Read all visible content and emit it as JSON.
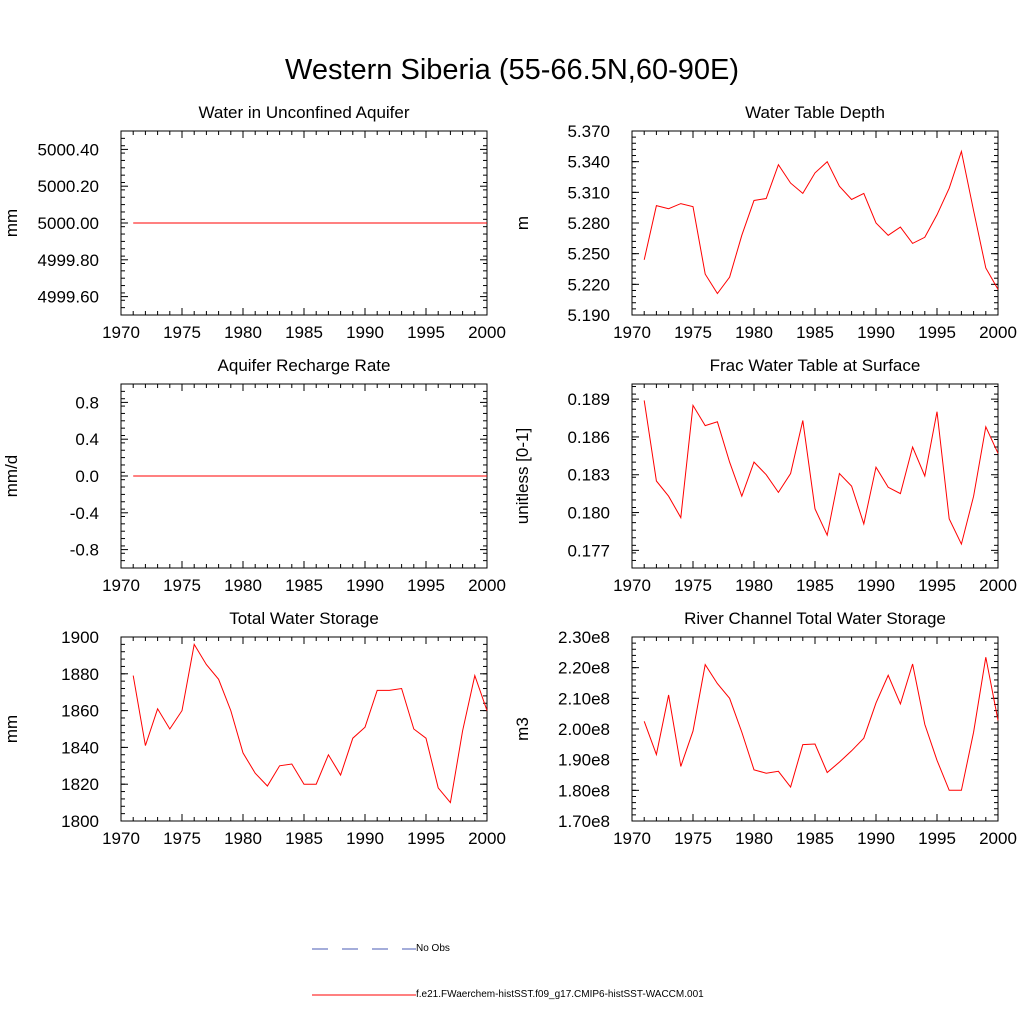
{
  "title": "Western Siberia (55-66.5N,60-90E)",
  "legend": {
    "obs_label": "No Obs",
    "obs_color": "#4a5bb5",
    "model_label": "f.e21.FWaerchem-histSST.f09_g17.CMIP6-histSST-WACCM.001",
    "model_color": "#ff0000"
  },
  "chart_data": [
    {
      "type": "line",
      "title": "Water in Unconfined Aquifer",
      "ylabel": "mm",
      "xlim": [
        1970,
        2000
      ],
      "ylim": [
        4999.5,
        5000.5
      ],
      "xticks": [
        1970,
        1975,
        1980,
        1985,
        1990,
        1995,
        2000
      ],
      "yticks": [
        "4999.60",
        "4999.80",
        "5000.00",
        "5000.20",
        "5000.40"
      ],
      "series": [
        {
          "x": [
            1971,
            1972,
            1973,
            1974,
            1975,
            1976,
            1977,
            1978,
            1979,
            1980,
            1981,
            1982,
            1983,
            1984,
            1985,
            1986,
            1987,
            1988,
            1989,
            1990,
            1991,
            1992,
            1993,
            1994,
            1995,
            1996,
            1997,
            1998,
            1999,
            2000
          ],
          "values": [
            5000,
            5000,
            5000,
            5000,
            5000,
            5000,
            5000,
            5000,
            5000,
            5000,
            5000,
            5000,
            5000,
            5000,
            5000,
            5000,
            5000,
            5000,
            5000,
            5000,
            5000,
            5000,
            5000,
            5000,
            5000,
            5000,
            5000,
            5000,
            5000,
            5000
          ]
        }
      ]
    },
    {
      "type": "line",
      "title": "Water Table Depth",
      "ylabel": "m",
      "xlim": [
        1970,
        2000
      ],
      "ylim": [
        5.19,
        5.37
      ],
      "xticks": [
        1970,
        1975,
        1980,
        1985,
        1990,
        1995,
        2000
      ],
      "yticks": [
        "5.190",
        "5.220",
        "5.250",
        "5.280",
        "5.310",
        "5.340",
        "5.370"
      ],
      "series": [
        {
          "x": [
            1971,
            1972,
            1973,
            1974,
            1975,
            1976,
            1977,
            1978,
            1979,
            1980,
            1981,
            1982,
            1983,
            1984,
            1985,
            1986,
            1987,
            1988,
            1989,
            1990,
            1991,
            1992,
            1993,
            1994,
            1995,
            1996,
            1997,
            1998,
            1999,
            2000
          ],
          "values": [
            5.244,
            5.297,
            5.294,
            5.299,
            5.296,
            5.23,
            5.211,
            5.227,
            5.268,
            5.302,
            5.304,
            5.337,
            5.319,
            5.309,
            5.329,
            5.34,
            5.316,
            5.303,
            5.309,
            5.28,
            5.268,
            5.276,
            5.26,
            5.266,
            5.288,
            5.314,
            5.35,
            5.292,
            5.236,
            5.215
          ]
        }
      ]
    },
    {
      "type": "line",
      "title": "Aquifer Recharge Rate",
      "ylabel": "mm/d",
      "xlim": [
        1970,
        2000
      ],
      "ylim": [
        -1.0,
        1.0
      ],
      "xticks": [
        1970,
        1975,
        1980,
        1985,
        1990,
        1995,
        2000
      ],
      "yticks": [
        "-0.8",
        "-0.4",
        "0.0",
        "0.4",
        "0.8"
      ],
      "series": [
        {
          "x": [
            1971,
            1972,
            1973,
            1974,
            1975,
            1976,
            1977,
            1978,
            1979,
            1980,
            1981,
            1982,
            1983,
            1984,
            1985,
            1986,
            1987,
            1988,
            1989,
            1990,
            1991,
            1992,
            1993,
            1994,
            1995,
            1996,
            1997,
            1998,
            1999,
            2000
          ],
          "values": [
            0,
            0,
            0,
            0,
            0,
            0,
            0,
            0,
            0,
            0,
            0,
            0,
            0,
            0,
            0,
            0,
            0,
            0,
            0,
            0,
            0,
            0,
            0,
            0,
            0,
            0,
            0,
            0,
            0,
            0
          ]
        }
      ]
    },
    {
      "type": "line",
      "title": "Frac Water Table at Surface",
      "ylabel": "unitless [0-1]",
      "xlim": [
        1970,
        2000
      ],
      "ylim": [
        0.1756,
        0.1902
      ],
      "xticks": [
        1970,
        1975,
        1980,
        1985,
        1990,
        1995,
        2000
      ],
      "yticks": [
        "0.177",
        "0.180",
        "0.183",
        "0.186",
        "0.189"
      ],
      "series": [
        {
          "x": [
            1971,
            1972,
            1973,
            1974,
            1975,
            1976,
            1977,
            1978,
            1979,
            1980,
            1981,
            1982,
            1983,
            1984,
            1985,
            1986,
            1987,
            1988,
            1989,
            1990,
            1991,
            1992,
            1993,
            1994,
            1995,
            1996,
            1997,
            1998,
            1999,
            2000
          ],
          "values": [
            0.1889,
            0.1825,
            0.1813,
            0.1796,
            0.1885,
            0.1869,
            0.1872,
            0.184,
            0.1813,
            0.184,
            0.183,
            0.1816,
            0.1831,
            0.1873,
            0.1803,
            0.1782,
            0.1831,
            0.1821,
            0.1791,
            0.1836,
            0.182,
            0.1815,
            0.1852,
            0.1829,
            0.188,
            0.1795,
            0.1775,
            0.1813,
            0.1868,
            0.1847
          ]
        }
      ]
    },
    {
      "type": "line",
      "title": "Total Water Storage",
      "ylabel": "mm",
      "xlim": [
        1970,
        2000
      ],
      "ylim": [
        1800,
        1900
      ],
      "xticks": [
        1970,
        1975,
        1980,
        1985,
        1990,
        1995,
        2000
      ],
      "yticks": [
        "1800",
        "1820",
        "1840",
        "1860",
        "1880",
        "1900"
      ],
      "series": [
        {
          "x": [
            1971,
            1972,
            1973,
            1974,
            1975,
            1976,
            1977,
            1978,
            1979,
            1980,
            1981,
            1982,
            1983,
            1984,
            1985,
            1986,
            1987,
            1988,
            1989,
            1990,
            1991,
            1992,
            1993,
            1994,
            1995,
            1996,
            1997,
            1998,
            1999,
            2000
          ],
          "values": [
            1879,
            1841,
            1861,
            1850,
            1860,
            1896,
            1885,
            1877,
            1860,
            1837,
            1826,
            1819,
            1830,
            1831,
            1820,
            1820,
            1836,
            1825,
            1845,
            1851,
            1871,
            1871,
            1872,
            1850,
            1845,
            1818,
            1810,
            1849,
            1879,
            1860
          ]
        }
      ]
    },
    {
      "type": "line",
      "title": "River Channel Total Water Storage",
      "ylabel": "m3",
      "xlim": [
        1970,
        2000
      ],
      "ylim": [
        170000000,
        230000000
      ],
      "xticks": [
        1970,
        1975,
        1980,
        1985,
        1990,
        1995,
        2000
      ],
      "yticks": [
        "1.70e8",
        "1.80e8",
        "1.90e8",
        "2.00e8",
        "2.10e8",
        "2.20e8",
        "2.30e8"
      ],
      "series": [
        {
          "x": [
            1971,
            1972,
            1973,
            1974,
            1975,
            1976,
            1977,
            1978,
            1979,
            1980,
            1981,
            1982,
            1983,
            1984,
            1985,
            1986,
            1987,
            1988,
            1989,
            1990,
            1991,
            1992,
            1993,
            1994,
            1995,
            1996,
            1997,
            1998,
            1999,
            2000
          ],
          "values": [
            202500000,
            191700000,
            211100000,
            187800000,
            199300000,
            221000000,
            214800000,
            210000000,
            199000000,
            186700000,
            185600000,
            186200000,
            181100000,
            194900000,
            195100000,
            185800000,
            189200000,
            192900000,
            197000000,
            208500000,
            217500000,
            208200000,
            221200000,
            201500000,
            189800000,
            180000000,
            180000000,
            199000000,
            223400000,
            202800000
          ]
        }
      ]
    }
  ]
}
